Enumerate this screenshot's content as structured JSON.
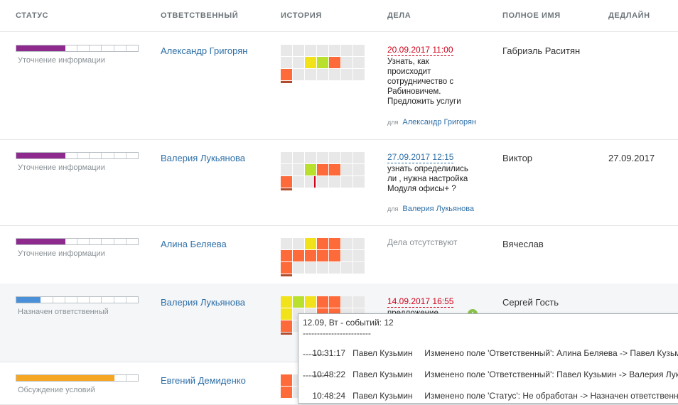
{
  "header": {
    "status": "СТАТУС",
    "responsible": "ОТВЕТСТВЕННЫЙ",
    "history": "ИСТОРИЯ",
    "tasks": "ДЕЛА",
    "full_name": "ПОЛНОЕ ИМЯ",
    "deadline": "ДЕДЛАЙН"
  },
  "colors": {
    "purple": "#8e2a8e",
    "blue": "#4a90d9",
    "orange": "#f5a623",
    "lime": "#b8e02c",
    "yellow": "#f2e21a",
    "red_orange": "#ff6a3a",
    "link": "#2e6fa7",
    "overdue": "#d0021b"
  },
  "rows": [
    {
      "status": {
        "label": "Уточнение информации",
        "segments": 10,
        "filled": 4,
        "color": "#8e2a8e"
      },
      "responsible": "Александр Григорян",
      "history": [
        [
          "g",
          "g",
          "g",
          "g",
          "g",
          "g",
          "g"
        ],
        [
          "g",
          "g",
          "y",
          "l",
          "o",
          "g",
          "g"
        ],
        [
          "o",
          "g",
          "g",
          "g",
          "g",
          "g",
          "g"
        ]
      ],
      "task": {
        "date": "20.09.2017 11:00",
        "date_state": "overdue",
        "text": "Узнать, как происходит сотрудничество с Рабиновичем. Предложить услуги",
        "for_label": "для",
        "for_name": "Александр Григорян"
      },
      "full_name": "Габриэль Раситян",
      "deadline": ""
    },
    {
      "status": {
        "label": "Уточнение информации",
        "segments": 10,
        "filled": 4,
        "color": "#8e2a8e"
      },
      "responsible": "Валерия Лукьянова",
      "history": [
        [
          "g",
          "g",
          "g",
          "g",
          "g",
          "g",
          "g"
        ],
        [
          "g",
          "g",
          "l",
          "o",
          "o",
          "g",
          "g"
        ],
        [
          "o",
          "g",
          "g",
          "g",
          "g",
          "g",
          "g"
        ]
      ],
      "task": {
        "date": "27.09.2017 12:15",
        "date_state": "normal",
        "text": "узнать определились ли , нужна настройка Модуля офисы+ ?",
        "for_label": "для",
        "for_name": "Валерия Лукьянова"
      },
      "full_name": "Виктор",
      "deadline": "27.09.2017"
    },
    {
      "status": {
        "label": "Уточнение информации",
        "segments": 10,
        "filled": 4,
        "color": "#8e2a8e"
      },
      "responsible": "Алина Беляева",
      "history": [
        [
          "g",
          "g",
          "y",
          "o",
          "o",
          "g",
          "g"
        ],
        [
          "o",
          "o",
          "o",
          "o",
          "o",
          "g",
          "g"
        ],
        [
          "o",
          "g",
          "g",
          "g",
          "g",
          "g",
          "g"
        ]
      ],
      "task": {
        "none": "Дела отсутствуют"
      },
      "full_name": "Вячеслав",
      "deadline": ""
    },
    {
      "status": {
        "label": "Назначен ответственный",
        "segments": 10,
        "filled": 2,
        "color": "#4a90d9"
      },
      "responsible": "Валерия Лукьянова",
      "history": [
        [
          "y",
          "l",
          "y",
          "o",
          "o",
          "g",
          "g"
        ],
        [
          "y",
          "g",
          "g",
          "o",
          "o",
          "g",
          "g"
        ],
        [
          "o",
          "g",
          "g",
          "o",
          "o",
          "g",
          "g"
        ]
      ],
      "task": {
        "date": "14.09.2017 16:55",
        "date_state": "overdue",
        "text": "предложение",
        "plus": "+"
      },
      "full_name": "Сергей Гость",
      "deadline": ""
    },
    {
      "status": {
        "label": "Обсуждение условий",
        "segments": 10,
        "filled": 8,
        "color": "#f5a623"
      },
      "responsible": "Евгений Демиденко",
      "history": [
        [
          "o",
          "g",
          "g",
          "g",
          "g",
          "g",
          "g"
        ],
        [
          "o",
          "g",
          "g",
          "g",
          "g",
          "g",
          "g"
        ]
      ],
      "task": {},
      "full_name": "",
      "deadline": ""
    }
  ],
  "tooltip": {
    "title": "12.09, Вт - событий: 12",
    "separator": "------------------------",
    "short_sep": "--------",
    "events": [
      {
        "time": "10:31:17",
        "user": "Павел Кузьмин",
        "text": "Изменено поле 'Ответственный': Алина Беляева -> Павел Кузьмин"
      },
      {
        "time": "10:48:22",
        "user": "Павел Кузьмин",
        "text": "Изменено поле 'Ответственный': Павел Кузьмин -> Валерия Лукьянова"
      },
      {
        "time": "10:48:24",
        "user": "Павел Кузьмин",
        "text": "Изменено поле 'Статус': Не обработан -> Назначен ответственный"
      }
    ]
  }
}
